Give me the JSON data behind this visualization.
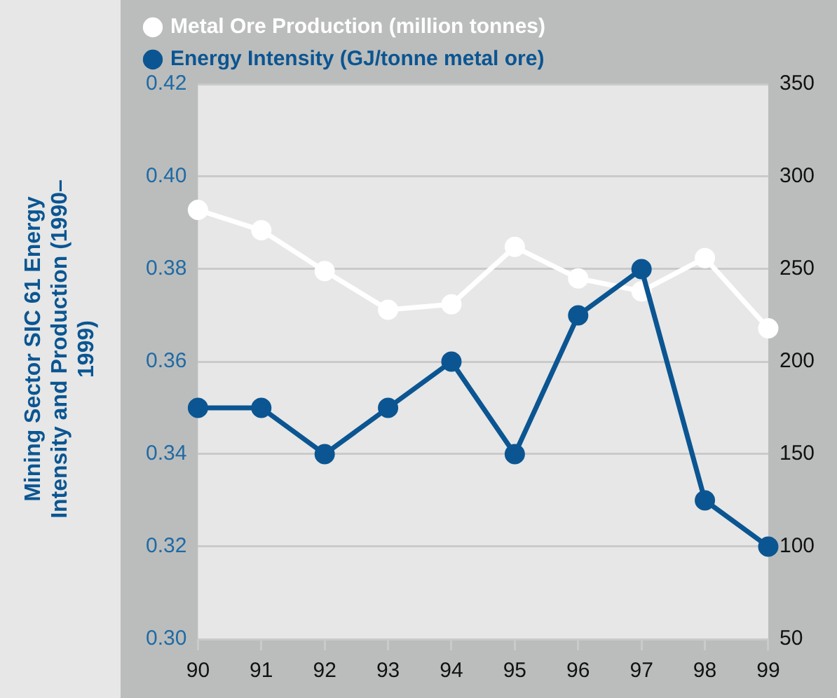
{
  "chart_data": {
    "type": "line",
    "title": "Mining Sector SIC 61 Energy Intensity and Production (1990–1999)",
    "categories": [
      "90",
      "91",
      "92",
      "93",
      "94",
      "95",
      "96",
      "97",
      "98",
      "99"
    ],
    "series": [
      {
        "name": "Metal Ore Production (million tonnes)",
        "color": "#ffffff",
        "axis": "y2",
        "values": [
          282,
          271,
          249,
          228,
          231,
          262,
          245,
          238,
          256,
          218
        ]
      },
      {
        "name": "Energy Intensity (GJ/tonne metal ore)",
        "color": "#0b5592",
        "values": [
          0.35,
          0.35,
          0.34,
          0.35,
          0.36,
          0.34,
          0.37,
          0.38,
          0.33,
          0.32
        ]
      }
    ],
    "ylim": [
      0.3,
      0.42
    ],
    "yticks": [
      {
        "value": 0.3,
        "label": "0.30"
      },
      0.32,
      0.34,
      0.36,
      0.38,
      {
        "value": 0.4,
        "label": "0.40"
      },
      0.42
    ],
    "y2lim": [
      50,
      350
    ],
    "y2ticks": [
      50,
      100,
      150,
      200,
      250,
      300,
      350
    ],
    "grid": "y",
    "legend": "top",
    "marker": "circle",
    "line_style": "solid"
  }
}
